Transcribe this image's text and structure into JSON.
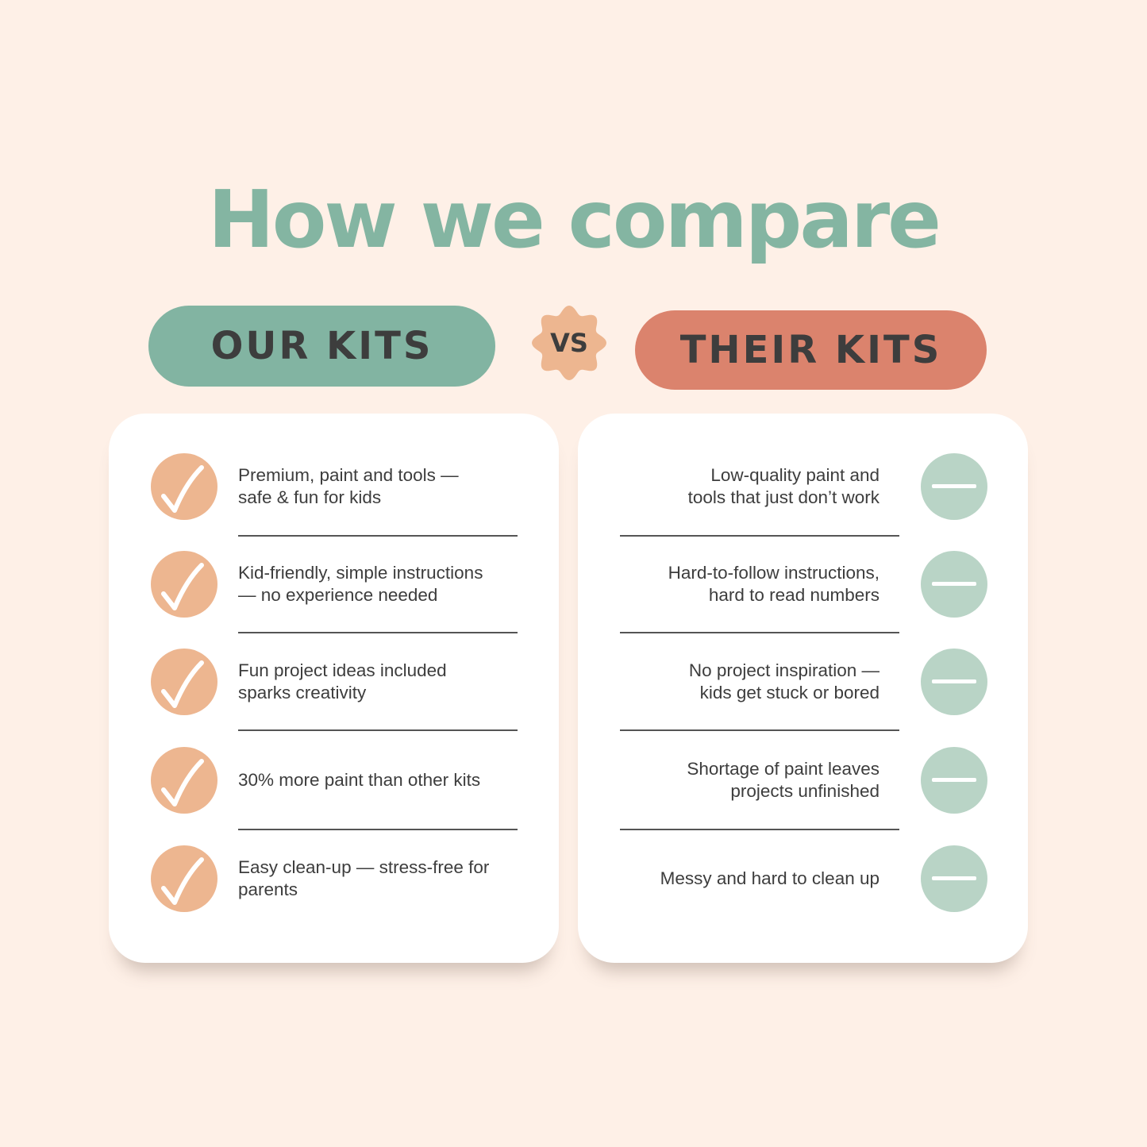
{
  "title": "How we compare",
  "ours": {
    "label": "OUR KITS",
    "items": [
      "Premium, paint and tools —\nsafe & fun for kids",
      "Kid-friendly, simple instructions\n— no experience needed",
      "Fun project ideas included\nsparks creativity",
      "30% more paint than other kits",
      "Easy clean-up — stress-free for\nparents"
    ]
  },
  "vs": "VS",
  "theirs": {
    "label": "THEIR KITS",
    "items": [
      "Low-quality paint and\ntools that just don’t work",
      "Hard-to-follow instructions,\nhard to read numbers",
      "No project inspiration —\nkids get stuck or bored",
      "Shortage of paint leaves\nprojects unfinished",
      "Messy and hard to clean up"
    ]
  },
  "colors": {
    "background": "#fef0e7",
    "title": "#84b5a2",
    "ours": "#82b4a2",
    "theirs": "#db836d",
    "vs": "#edb690",
    "check": "#edb690",
    "dash": "#b9d4c6"
  },
  "icons": {
    "ours": "check-icon",
    "theirs": "dash-icon"
  }
}
